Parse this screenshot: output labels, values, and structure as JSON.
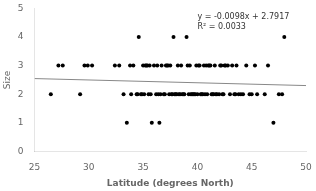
{
  "chart_data": {
    "type": "scatter",
    "xlabel": "Latitude (degrees North)",
    "ylabel": "Size",
    "annotations": [
      "y = -0.0098x + 2.7917",
      "R² = 0.0033"
    ],
    "xlim": [
      25,
      50
    ],
    "ylim": [
      0,
      5
    ],
    "xticks": [
      25,
      30,
      35,
      40,
      45,
      50
    ],
    "yticks": [
      0,
      1,
      2,
      3,
      4,
      5
    ],
    "grid": false,
    "series": [
      {
        "type": "scatter",
        "color": "black",
        "x": [
          26.5,
          27.2,
          27.6,
          29.2,
          29.6,
          29.9,
          30.3,
          32.4,
          32.8,
          33.2,
          33.5,
          33.8,
          33.9,
          34.1,
          34.4,
          34.5,
          34.6,
          34.8,
          34.9,
          35.0,
          35.1,
          35.2,
          35.3,
          35.4,
          35.5,
          35.6,
          35.7,
          35.8,
          36.0,
          36.2,
          36.3,
          36.4,
          36.5,
          36.6,
          36.7,
          36.9,
          37.0,
          37.1,
          37.2,
          37.3,
          37.4,
          37.5,
          37.6,
          37.7,
          37.8,
          37.9,
          38.0,
          38.1,
          38.2,
          38.3,
          38.4,
          38.5,
          38.6,
          38.7,
          38.8,
          39.0,
          39.1,
          39.2,
          39.3,
          39.4,
          39.5,
          39.6,
          39.7,
          39.8,
          39.9,
          40.0,
          40.1,
          40.2,
          40.3,
          40.4,
          40.5,
          40.6,
          40.7,
          40.8,
          40.9,
          41.0,
          41.1,
          41.2,
          41.3,
          41.4,
          41.5,
          41.6,
          41.7,
          41.8,
          42.0,
          42.1,
          42.2,
          42.3,
          42.4,
          42.5,
          42.6,
          42.8,
          43.0,
          43.2,
          43.4,
          43.5,
          43.6,
          43.8,
          44.0,
          44.2,
          44.5,
          44.8,
          45.0,
          45.3,
          45.5,
          46.2,
          46.5,
          47.0,
          47.5,
          47.8,
          48.0
        ],
        "values": [
          2,
          3,
          3,
          2,
          3,
          3,
          3,
          3,
          3,
          2,
          1,
          3,
          2,
          3,
          2,
          2,
          4,
          2,
          2,
          3,
          2,
          3,
          3,
          3,
          2,
          3,
          2,
          1,
          3,
          2,
          3,
          2,
          1,
          2,
          3,
          2,
          2,
          3,
          3,
          3,
          2,
          3,
          2,
          2,
          4,
          2,
          2,
          2,
          3,
          2,
          2,
          3,
          2,
          2,
          2,
          4,
          3,
          2,
          3,
          2,
          2,
          2,
          2,
          2,
          3,
          2,
          3,
          3,
          2,
          2,
          2,
          3,
          2,
          3,
          2,
          3,
          3,
          3,
          2,
          2,
          2,
          3,
          2,
          2,
          2,
          3,
          3,
          2,
          2,
          3,
          3,
          3,
          2,
          3,
          2,
          2,
          3,
          2,
          2,
          2,
          3,
          2,
          2,
          3,
          2,
          2,
          3,
          1,
          2,
          2,
          4
        ]
      },
      {
        "type": "line",
        "color": "#888888",
        "x": [
          25,
          50
        ],
        "values": [
          2.5467,
          2.3017
        ]
      }
    ]
  }
}
